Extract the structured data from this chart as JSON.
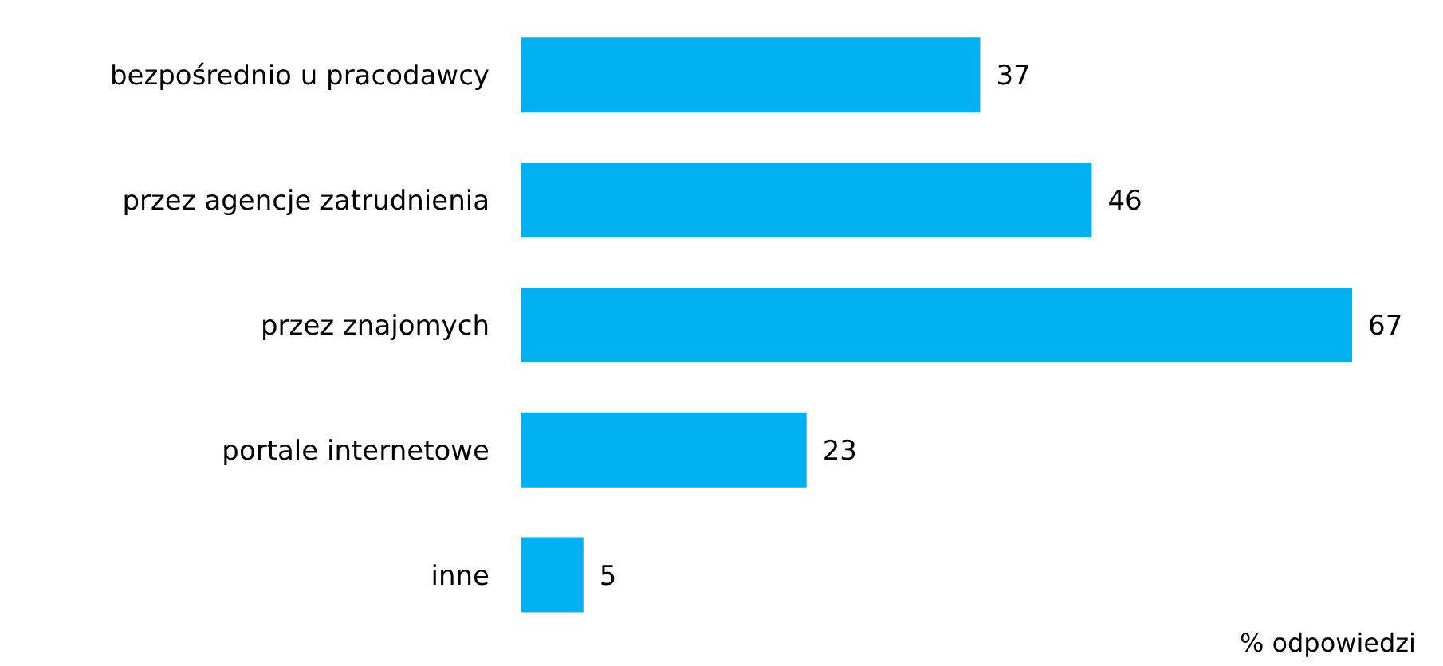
{
  "chart_data": {
    "type": "bar",
    "orientation": "horizontal",
    "categories": [
      "bezpośrednio u pracodawcy",
      "przez agencje zatrudnienia",
      "przez znajomych",
      "portale internetowe",
      "inne"
    ],
    "values": [
      37,
      46,
      67,
      23,
      5
    ],
    "color": "#00b0f0",
    "data_labels": true,
    "annotations": [
      "% odpowiedzi"
    ]
  }
}
